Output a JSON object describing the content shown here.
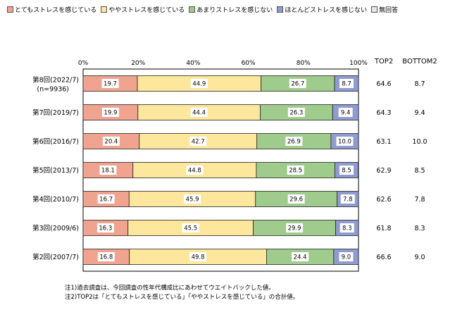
{
  "legend": [
    {
      "label": "とてもストレスを感じている",
      "color": "#f0a38f"
    },
    {
      "label": "ややストレスを感じている",
      "color": "#fde79d"
    },
    {
      "label": "あまりストレスを感じない",
      "color": "#9fcc8c"
    },
    {
      "label": "ほとんどストレスを感じない",
      "color": "#8f9bd1"
    },
    {
      "label": "無回答",
      "color": "#e6e6e6"
    }
  ],
  "col_headers": {
    "top2": "TOP2",
    "bottom2": "BOTTOM2"
  },
  "notes": [
    "注1)過去調査は、今回調査の性年代構成比にあわせてウエイトバックした値。",
    "注2)TOP2は「とてもストレスを感じている」「ややストレスを感じている」の合計値。"
  ],
  "chart_data": {
    "type": "bar",
    "orientation": "horizontal",
    "stacked": true,
    "xlim": [
      0,
      100
    ],
    "x_ticks": [
      "0%",
      "20%",
      "40%",
      "60%",
      "80%",
      "100%"
    ],
    "categories": [
      {
        "label": "第8回(2022/7)",
        "sublabel": "(n=9936)"
      },
      {
        "label": "第7回(2019/7)"
      },
      {
        "label": "第6回(2016/7)"
      },
      {
        "label": "第5回(2013/7)"
      },
      {
        "label": "第4回(2010/7)"
      },
      {
        "label": "第3回(2009/6)"
      },
      {
        "label": "第2回(2007/7)"
      }
    ],
    "series": [
      {
        "name": "とてもストレスを感じている",
        "color": "#f0a38f",
        "values": [
          19.7,
          19.9,
          20.4,
          18.1,
          16.7,
          16.3,
          16.8
        ]
      },
      {
        "name": "ややストレスを感じている",
        "color": "#fde79d",
        "values": [
          44.9,
          44.4,
          42.7,
          44.8,
          45.9,
          45.5,
          49.8
        ]
      },
      {
        "name": "あまりストレスを感じない",
        "color": "#9fcc8c",
        "values": [
          26.7,
          26.3,
          26.9,
          28.5,
          29.6,
          29.9,
          24.4
        ]
      },
      {
        "name": "ほとんどストレスを感じない",
        "color": "#8f9bd1",
        "values": [
          8.7,
          9.4,
          10.0,
          8.5,
          7.8,
          8.3,
          9.0
        ]
      },
      {
        "name": "無回答",
        "color": "#e6e6e6",
        "values": [
          0.0,
          0.0,
          0.0,
          0.1,
          0.0,
          0.0,
          0.0
        ]
      }
    ],
    "data_labels": [
      [
        "19.7",
        "44.9",
        "26.7",
        "8.7"
      ],
      [
        "19.9",
        "44.4",
        "26.3",
        "9.4"
      ],
      [
        "20.4",
        "42.7",
        "26.9",
        "10.0"
      ],
      [
        "18.1",
        "44.8",
        "28.5",
        "8.5"
      ],
      [
        "16.7",
        "45.9",
        "29.6",
        "7.8"
      ],
      [
        "16.3",
        "45.5",
        "29.9",
        "8.3"
      ],
      [
        "16.8",
        "49.8",
        "24.4",
        "9.0"
      ]
    ],
    "top2": [
      "64.6",
      "64.3",
      "63.1",
      "62.9",
      "62.6",
      "61.8",
      "66.6"
    ],
    "bottom2": [
      "8.7",
      "9.4",
      "10.0",
      "8.5",
      "7.8",
      "8.3",
      "9.0"
    ]
  }
}
